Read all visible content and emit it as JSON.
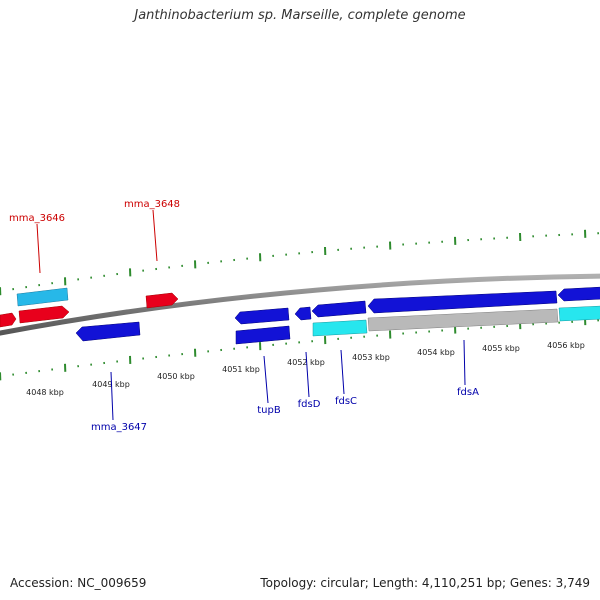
{
  "title": "Janthinobacterium sp. Marseille, complete genome",
  "footer": {
    "accession": "Accession: NC_009659",
    "summary": "Topology: circular; Length: 4,110,251 bp; Genes: 3,749"
  },
  "colors": {
    "background": "#ffffff",
    "backbone": "#808080",
    "tick": "#2e8b2e",
    "forward_gene": "#e8001c",
    "reverse_gene": "#1212d6",
    "forward_cds": "#27b8e8",
    "reverse_cds": "#27e6ee",
    "pseudo_cds": "#b9b9b9",
    "forward_label": "#cc0000",
    "reverse_label": "#0000aa"
  },
  "axis": {
    "unit": "kbp",
    "ticks": [
      "4048 kbp",
      "4049 kbp",
      "4050 kbp",
      "4051 kbp",
      "4052 kbp",
      "4053 kbp",
      "4054 kbp",
      "4055 kbp",
      "4056 kbp"
    ]
  },
  "genes": [
    {
      "label": "mma_3646",
      "strand": "forward"
    },
    {
      "label": "mma_3648",
      "strand": "forward"
    },
    {
      "label": "mma_3647",
      "strand": "reverse"
    },
    {
      "label": "tupB",
      "strand": "reverse"
    },
    {
      "label": "fdsD",
      "strand": "reverse"
    },
    {
      "label": "fdsC",
      "strand": "reverse"
    },
    {
      "label": "fdsA",
      "strand": "reverse"
    }
  ]
}
